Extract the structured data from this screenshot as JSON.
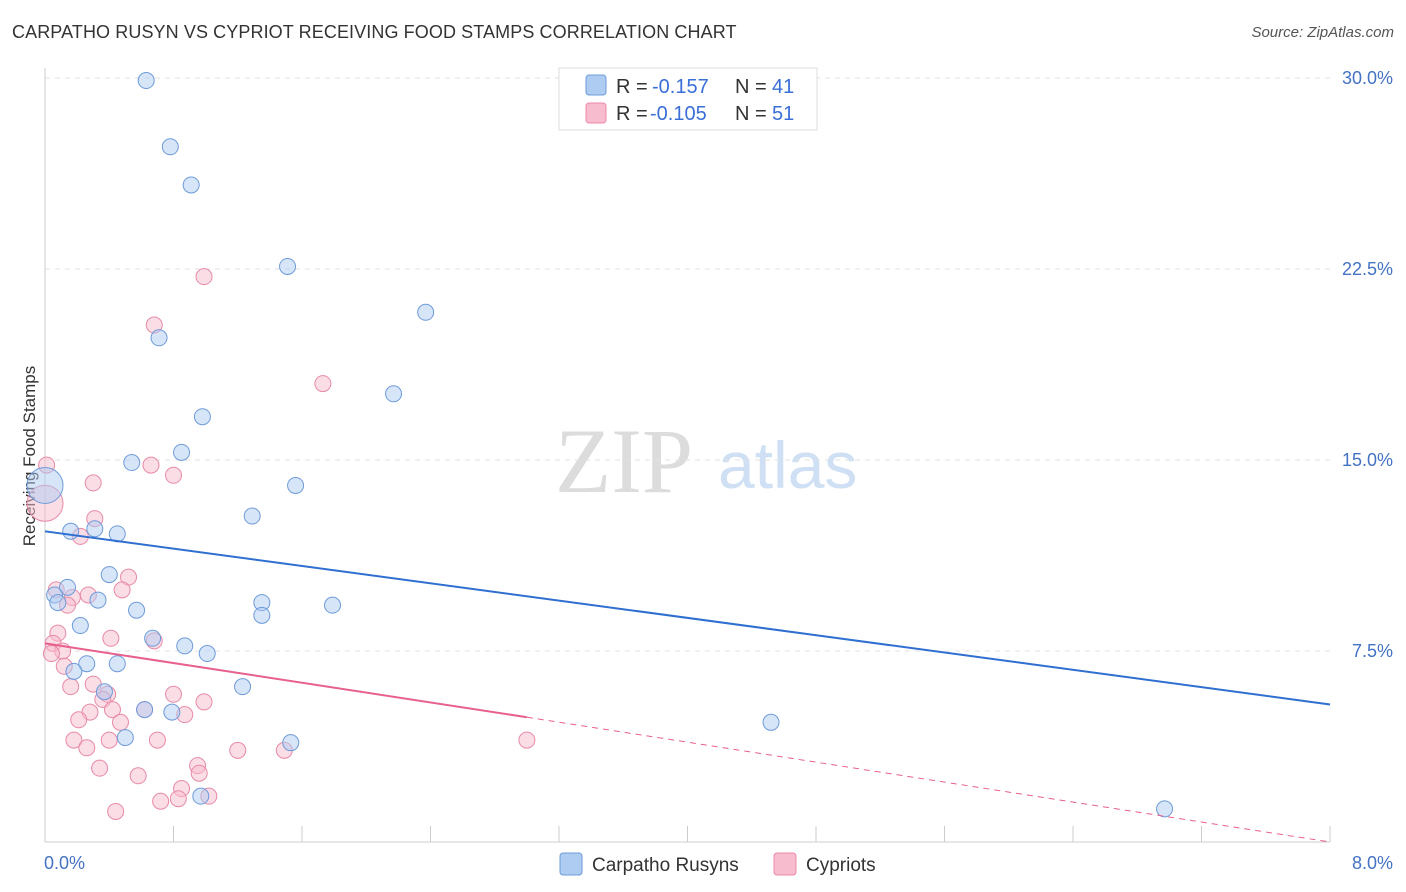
{
  "header": {
    "title": "CARPATHO RUSYN VS CYPRIOT RECEIVING FOOD STAMPS CORRELATION CHART",
    "source": "Source: ZipAtlas.com"
  },
  "watermark": {
    "zip": "ZIP",
    "atlas": "atlas"
  },
  "legend": {
    "rows": [
      {
        "r_label": "R = ",
        "r_value": "-0.157",
        "n_label": "N = ",
        "n_value": "41"
      },
      {
        "r_label": "R = ",
        "r_value": "-0.105",
        "n_label": "N = ",
        "n_value": "51"
      }
    ]
  },
  "colors": {
    "blue_fill": "#aecbf2",
    "blue_stroke": "#6e9bd9",
    "blue_line": "#2f6fd0",
    "pink_fill": "#f7bccd",
    "pink_stroke": "#e88aa6",
    "pink_line": "#e8608c"
  },
  "chart_data": {
    "type": "scatter",
    "title": "CARPATHO RUSYN VS CYPRIOT RECEIVING FOOD STAMPS CORRELATION CHART",
    "xlabel": "",
    "ylabel": "Receiving Food Stamps",
    "xlim": [
      0,
      8
    ],
    "ylim": [
      0,
      30
    ],
    "x_tick_labels": [
      "0.0%",
      "8.0%"
    ],
    "y_ticks": [
      7.5,
      15.0,
      22.5,
      30.0
    ],
    "y_tick_labels": [
      "7.5%",
      "15.0%",
      "22.5%",
      "30.0%"
    ],
    "legend_position": "top-center",
    "series": [
      {
        "name": "Carpatho Rusyns",
        "color": "#aecbf2",
        "r": -0.157,
        "n": 41,
        "trend": {
          "x": [
            0.0,
            8.0
          ],
          "y": [
            12.2,
            5.4
          ]
        },
        "points": [
          [
            0.0,
            14.0
          ],
          [
            0.63,
            29.9
          ],
          [
            0.78,
            27.3
          ],
          [
            0.91,
            25.8
          ],
          [
            1.51,
            22.6
          ],
          [
            2.37,
            20.8
          ],
          [
            0.71,
            19.8
          ],
          [
            2.17,
            17.6
          ],
          [
            0.98,
            16.7
          ],
          [
            0.85,
            15.3
          ],
          [
            0.54,
            14.9
          ],
          [
            1.56,
            14.0
          ],
          [
            1.29,
            12.8
          ],
          [
            0.16,
            12.2
          ],
          [
            0.31,
            12.3
          ],
          [
            0.45,
            12.1
          ],
          [
            0.14,
            10.0
          ],
          [
            0.06,
            9.7
          ],
          [
            0.08,
            9.4
          ],
          [
            0.4,
            10.5
          ],
          [
            0.33,
            9.5
          ],
          [
            1.35,
            9.4
          ],
          [
            1.79,
            9.3
          ],
          [
            1.35,
            8.9
          ],
          [
            0.57,
            9.1
          ],
          [
            0.22,
            8.5
          ],
          [
            0.67,
            8.0
          ],
          [
            0.87,
            7.7
          ],
          [
            1.01,
            7.4
          ],
          [
            0.45,
            7.0
          ],
          [
            0.26,
            7.0
          ],
          [
            0.18,
            6.7
          ],
          [
            1.23,
            6.1
          ],
          [
            0.37,
            5.9
          ],
          [
            0.62,
            5.2
          ],
          [
            0.79,
            5.1
          ],
          [
            4.52,
            4.7
          ],
          [
            0.5,
            4.1
          ],
          [
            1.53,
            3.9
          ],
          [
            0.97,
            1.8
          ],
          [
            6.97,
            1.3
          ]
        ]
      },
      {
        "name": "Cypriots",
        "color": "#f7bccd",
        "r": -0.105,
        "n": 51,
        "trend": {
          "x": [
            0.0,
            3.0
          ],
          "y": [
            7.8,
            4.9
          ]
        },
        "trend_dashed": {
          "x": [
            3.0,
            8.0
          ],
          "y": [
            4.9,
            0.0
          ]
        },
        "points": [
          [
            0.01,
            14.8
          ],
          [
            0.0,
            13.3
          ],
          [
            0.99,
            22.2
          ],
          [
            0.68,
            20.3
          ],
          [
            1.73,
            18.0
          ],
          [
            0.66,
            14.8
          ],
          [
            0.8,
            14.4
          ],
          [
            0.3,
            14.1
          ],
          [
            0.31,
            12.7
          ],
          [
            0.22,
            12.0
          ],
          [
            0.52,
            10.4
          ],
          [
            0.48,
            9.9
          ],
          [
            0.07,
            9.9
          ],
          [
            0.17,
            9.6
          ],
          [
            0.27,
            9.7
          ],
          [
            0.14,
            9.3
          ],
          [
            0.08,
            8.2
          ],
          [
            0.41,
            8.0
          ],
          [
            0.68,
            7.9
          ],
          [
            0.05,
            7.8
          ],
          [
            0.11,
            7.5
          ],
          [
            0.04,
            7.4
          ],
          [
            0.12,
            6.9
          ],
          [
            0.16,
            6.1
          ],
          [
            0.3,
            6.2
          ],
          [
            0.39,
            5.8
          ],
          [
            0.8,
            5.8
          ],
          [
            0.99,
            5.5
          ],
          [
            0.36,
            5.6
          ],
          [
            0.28,
            5.1
          ],
          [
            0.42,
            5.2
          ],
          [
            0.62,
            5.2
          ],
          [
            0.87,
            5.0
          ],
          [
            0.21,
            4.8
          ],
          [
            0.47,
            4.7
          ],
          [
            0.4,
            4.0
          ],
          [
            0.7,
            4.0
          ],
          [
            0.18,
            4.0
          ],
          [
            0.26,
            3.7
          ],
          [
            1.2,
            3.6
          ],
          [
            1.49,
            3.6
          ],
          [
            3.0,
            4.0
          ],
          [
            0.95,
            3.0
          ],
          [
            0.34,
            2.9
          ],
          [
            0.58,
            2.6
          ],
          [
            0.96,
            2.7
          ],
          [
            0.85,
            2.1
          ],
          [
            0.72,
            1.6
          ],
          [
            1.02,
            1.8
          ],
          [
            0.83,
            1.7
          ],
          [
            0.44,
            1.2
          ]
        ]
      }
    ]
  },
  "bottom_legend": [
    {
      "label": "Carpatho Rusyns"
    },
    {
      "label": "Cypriots"
    }
  ]
}
